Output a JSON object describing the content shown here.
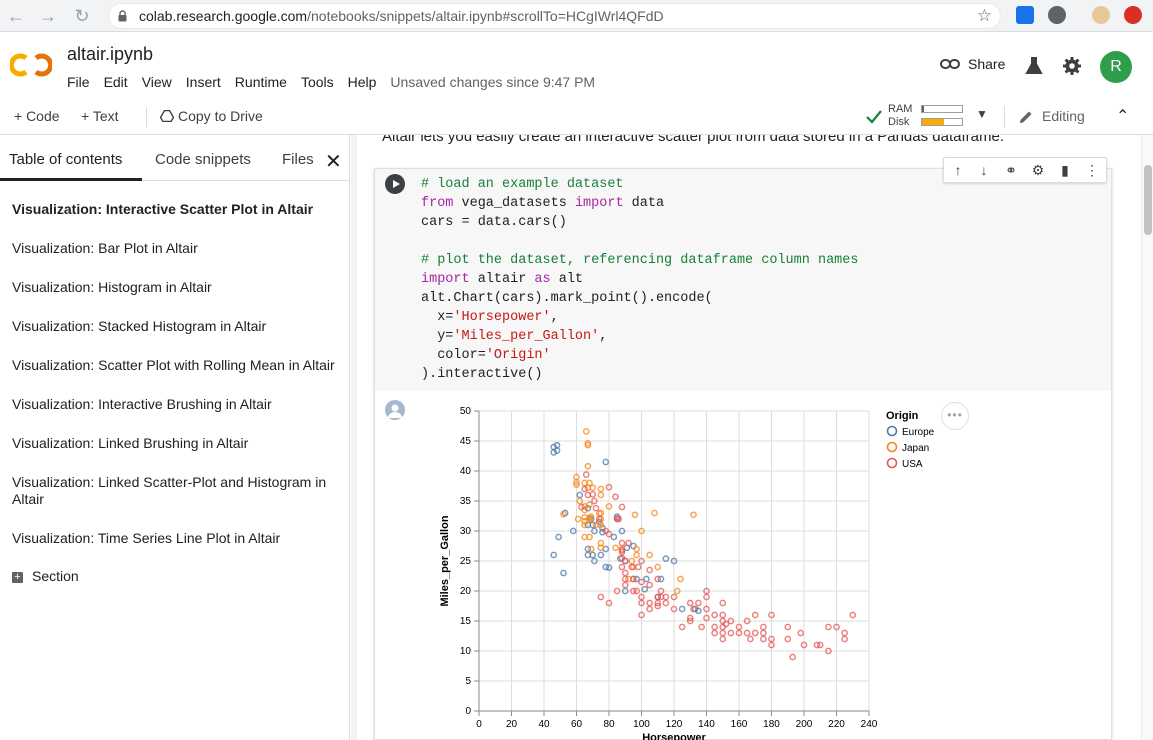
{
  "browser": {
    "url_host": "colab.research.google.com",
    "url_path": "/notebooks/snippets/altair.ipynb#scrollTo=HCgIWrl4QFdD"
  },
  "header": {
    "title": "altair.ipynb",
    "menu": [
      "File",
      "Edit",
      "View",
      "Insert",
      "Runtime",
      "Tools",
      "Help"
    ],
    "unsaved": "Unsaved changes since 9:47 PM",
    "share_label": "Share",
    "avatar_letter": "R"
  },
  "toolbar": {
    "code_label": "+ Code",
    "text_label": "+ Text",
    "copy_label": "Copy to Drive",
    "ram_label": "RAM",
    "disk_label": "Disk",
    "ram_fraction": 0.05,
    "disk_fraction": 0.55,
    "editing_label": "Editing"
  },
  "sidebar": {
    "tabs": [
      "Table of contents",
      "Code snippets",
      "Files"
    ],
    "items": [
      "Visualization: Interactive Scatter Plot in Altair",
      "Visualization: Bar Plot in Altair",
      "Visualization: Histogram in Altair",
      "Visualization: Stacked Histogram in Altair",
      "Visualization: Scatter Plot with Rolling Mean in Altair",
      "Visualization: Interactive Brushing in Altair",
      "Visualization: Linked Brushing in Altair",
      "Visualization: Linked Scatter-Plot and Histogram in Altair",
      "Visualization: Time Series Line Plot in Altair"
    ],
    "section_label": "Section"
  },
  "main": {
    "prev_text": "Altair lets you easily create an interactive scatter plot from data stored in a Pandas dataframe."
  },
  "chart_data": {
    "type": "scatter",
    "xlabel": "Horsepower",
    "ylabel": "Miles_per_Gallon",
    "xlim": [
      0,
      240
    ],
    "ylim": [
      0,
      50
    ],
    "xticks": [
      0,
      20,
      40,
      60,
      80,
      100,
      120,
      140,
      160,
      180,
      200,
      220,
      240
    ],
    "yticks": [
      0,
      5,
      10,
      15,
      20,
      25,
      30,
      35,
      40,
      45,
      50
    ],
    "grid": true,
    "legend_title": "Origin",
    "legend_position": "top-right",
    "series": [
      {
        "name": "Europe",
        "color": "#4c78a8",
        "points": [
          [
            46,
            26
          ],
          [
            46,
            43.1
          ],
          [
            46,
            44
          ],
          [
            48,
            43.4
          ],
          [
            48,
            44.3
          ],
          [
            49,
            29
          ],
          [
            52,
            23
          ],
          [
            53,
            33
          ],
          [
            58,
            30
          ],
          [
            62,
            36
          ],
          [
            67,
            33.8
          ],
          [
            67,
            31
          ],
          [
            67,
            26
          ],
          [
            67,
            27
          ],
          [
            69,
            32
          ],
          [
            70,
            26
          ],
          [
            70,
            31
          ],
          [
            71,
            30
          ],
          [
            71,
            25
          ],
          [
            74,
            31.5
          ],
          [
            75,
            26
          ],
          [
            76,
            29.8
          ],
          [
            76,
            30.5
          ],
          [
            78,
            27
          ],
          [
            78,
            24
          ],
          [
            78,
            41.5
          ],
          [
            80,
            23.9
          ],
          [
            83,
            29
          ],
          [
            85,
            32.4
          ],
          [
            87,
            25.4
          ],
          [
            88,
            30
          ],
          [
            90,
            20
          ],
          [
            90,
            25
          ],
          [
            91,
            27.2
          ],
          [
            95,
            27.5
          ],
          [
            97,
            22
          ],
          [
            102,
            20.3
          ],
          [
            103,
            22
          ],
          [
            110,
            19
          ],
          [
            112,
            22
          ],
          [
            115,
            25.4
          ],
          [
            120,
            25
          ],
          [
            125,
            17
          ],
          [
            133,
            17
          ],
          [
            135,
            16.7
          ]
        ]
      },
      {
        "name": "Japan",
        "color": "#f58518",
        "points": [
          [
            52,
            32.8
          ],
          [
            60,
            39
          ],
          [
            60,
            38.1
          ],
          [
            60,
            37.7
          ],
          [
            61,
            32
          ],
          [
            62,
            35
          ],
          [
            65,
            31.6
          ],
          [
            65,
            34.1
          ],
          [
            65,
            33.5
          ],
          [
            65,
            32.3
          ],
          [
            65,
            31
          ],
          [
            65,
            29
          ],
          [
            65,
            38
          ],
          [
            66,
            46.6
          ],
          [
            67,
            40.8
          ],
          [
            67,
            44.6
          ],
          [
            67,
            44.3
          ],
          [
            67,
            37.2
          ],
          [
            68,
            38
          ],
          [
            68,
            34.4
          ],
          [
            68,
            32.2
          ],
          [
            68,
            29
          ],
          [
            68,
            31.8
          ],
          [
            69,
            32.4
          ],
          [
            69,
            27
          ],
          [
            70,
            37.2
          ],
          [
            72,
            31
          ],
          [
            74,
            32.9
          ],
          [
            75,
            28
          ],
          [
            75,
            27.2
          ],
          [
            75,
            31
          ],
          [
            75,
            32
          ],
          [
            75,
            33
          ],
          [
            75,
            36
          ],
          [
            75,
            37
          ],
          [
            80,
            34.1
          ],
          [
            84,
            27.2
          ],
          [
            88,
            27
          ],
          [
            92,
            22
          ],
          [
            94,
            25
          ],
          [
            95,
            22
          ],
          [
            95,
            24
          ],
          [
            96,
            32.7
          ],
          [
            97,
            27
          ],
          [
            97,
            26
          ],
          [
            100,
            30
          ],
          [
            105,
            26
          ],
          [
            108,
            33
          ],
          [
            110,
            24
          ],
          [
            122,
            20
          ],
          [
            124,
            22
          ],
          [
            132,
            32.7
          ]
        ]
      },
      {
        "name": "USA",
        "color": "#e45756",
        "points": [
          [
            63,
            34
          ],
          [
            65,
            37
          ],
          [
            66,
            39.4
          ],
          [
            67,
            36
          ],
          [
            70,
            36.1
          ],
          [
            71,
            35
          ],
          [
            72,
            33.8
          ],
          [
            74,
            32
          ],
          [
            78,
            30
          ],
          [
            80,
            37.3
          ],
          [
            80,
            29.5
          ],
          [
            84,
            35.7
          ],
          [
            85,
            32.1
          ],
          [
            85,
            32
          ],
          [
            86,
            32
          ],
          [
            88,
            26.5
          ],
          [
            88,
            24
          ],
          [
            88,
            26.8
          ],
          [
            88,
            25.5
          ],
          [
            88,
            28
          ],
          [
            88,
            34
          ],
          [
            90,
            22
          ],
          [
            90,
            25
          ],
          [
            90,
            23
          ],
          [
            92,
            28
          ],
          [
            94,
            24
          ],
          [
            95,
            22
          ],
          [
            97,
            20
          ],
          [
            98,
            24
          ],
          [
            100,
            25
          ],
          [
            100,
            21.5
          ],
          [
            100,
            18
          ],
          [
            100,
            19
          ],
          [
            105,
            21
          ],
          [
            105,
            23.5
          ],
          [
            105,
            18
          ],
          [
            110,
            18
          ],
          [
            110,
            19
          ],
          [
            110,
            22
          ],
          [
            110,
            17.5
          ],
          [
            112,
            20
          ],
          [
            115,
            19
          ],
          [
            120,
            19
          ],
          [
            125,
            14
          ],
          [
            130,
            18
          ],
          [
            130,
            15
          ],
          [
            132,
            17
          ],
          [
            135,
            18
          ],
          [
            137,
            14
          ],
          [
            140,
            15.5
          ],
          [
            140,
            17
          ],
          [
            145,
            16
          ],
          [
            145,
            13
          ],
          [
            150,
            16
          ],
          [
            150,
            14
          ],
          [
            150,
            12
          ],
          [
            150,
            15
          ],
          [
            150,
            13
          ],
          [
            152,
            14.5
          ],
          [
            155,
            15
          ],
          [
            160,
            14
          ],
          [
            165,
            13
          ],
          [
            165,
            15
          ],
          [
            167,
            12
          ],
          [
            170,
            13
          ],
          [
            170,
            16
          ],
          [
            175,
            13
          ],
          [
            175,
            12
          ],
          [
            180,
            12
          ],
          [
            180,
            16
          ],
          [
            190,
            14
          ],
          [
            190,
            12
          ],
          [
            193,
            9
          ],
          [
            198,
            13
          ],
          [
            200,
            11
          ],
          [
            208,
            11
          ],
          [
            210,
            11
          ],
          [
            215,
            10
          ],
          [
            215,
            14
          ],
          [
            220,
            14
          ],
          [
            225,
            13
          ],
          [
            225,
            12
          ],
          [
            230,
            16
          ],
          [
            150,
            18
          ],
          [
            140,
            20
          ],
          [
            140,
            19
          ],
          [
            130,
            15.5
          ],
          [
            145,
            14
          ],
          [
            155,
            13
          ],
          [
            160,
            13
          ],
          [
            180,
            11
          ],
          [
            175,
            14
          ],
          [
            95,
            20
          ],
          [
            100,
            16
          ],
          [
            105,
            17
          ],
          [
            112,
            19
          ],
          [
            115,
            18
          ],
          [
            120,
            17
          ],
          [
            90,
            21
          ],
          [
            85,
            20
          ],
          [
            80,
            18
          ],
          [
            75,
            19
          ]
        ]
      }
    ]
  }
}
